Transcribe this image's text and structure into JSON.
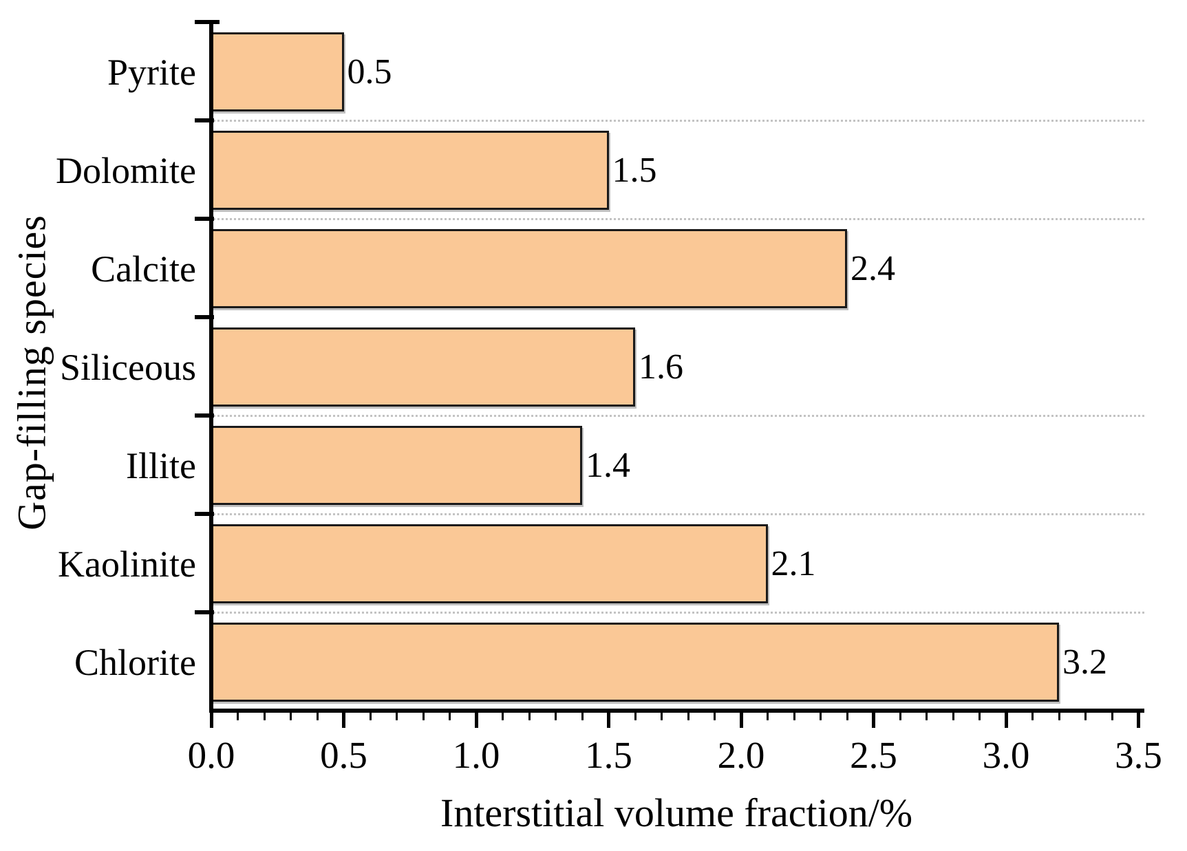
{
  "chart_data": {
    "type": "bar",
    "orientation": "horizontal",
    "title": "",
    "categories": [
      "Pyrite",
      "Dolomite",
      "Calcite",
      "Siliceous",
      "Illite",
      "Kaolinite",
      "Chlorite"
    ],
    "values": [
      0.5,
      1.5,
      2.4,
      1.6,
      1.4,
      2.1,
      3.2
    ],
    "value_labels": [
      "0.5",
      "1.5",
      "2.4",
      "1.6",
      "1.4",
      "2.1",
      "3.2"
    ],
    "xlabel": "Interstitial volume fraction/%",
    "ylabel": "Gap-filling species",
    "xlim": [
      0,
      3.5
    ],
    "x_major_ticks": [
      0.0,
      0.5,
      1.0,
      1.5,
      2.0,
      2.5,
      3.0,
      3.5
    ],
    "x_tick_labels": [
      "0.0",
      "0.5",
      "1.0",
      "1.5",
      "2.0",
      "2.5",
      "3.0",
      "3.5"
    ],
    "x_minor_tick_step": 0.1,
    "grid": "dotted horizontal lines at category boundaries",
    "gridline_between_categories": [
      true,
      true,
      false,
      true,
      true,
      true
    ],
    "legend": "none",
    "colors": {
      "bar_fill": "#FAC896",
      "bar_border": "#1A1A1A",
      "axis": "#000000",
      "gridline": "#C3C3C3",
      "text": "#000000",
      "background": "#FFFFFF"
    }
  }
}
